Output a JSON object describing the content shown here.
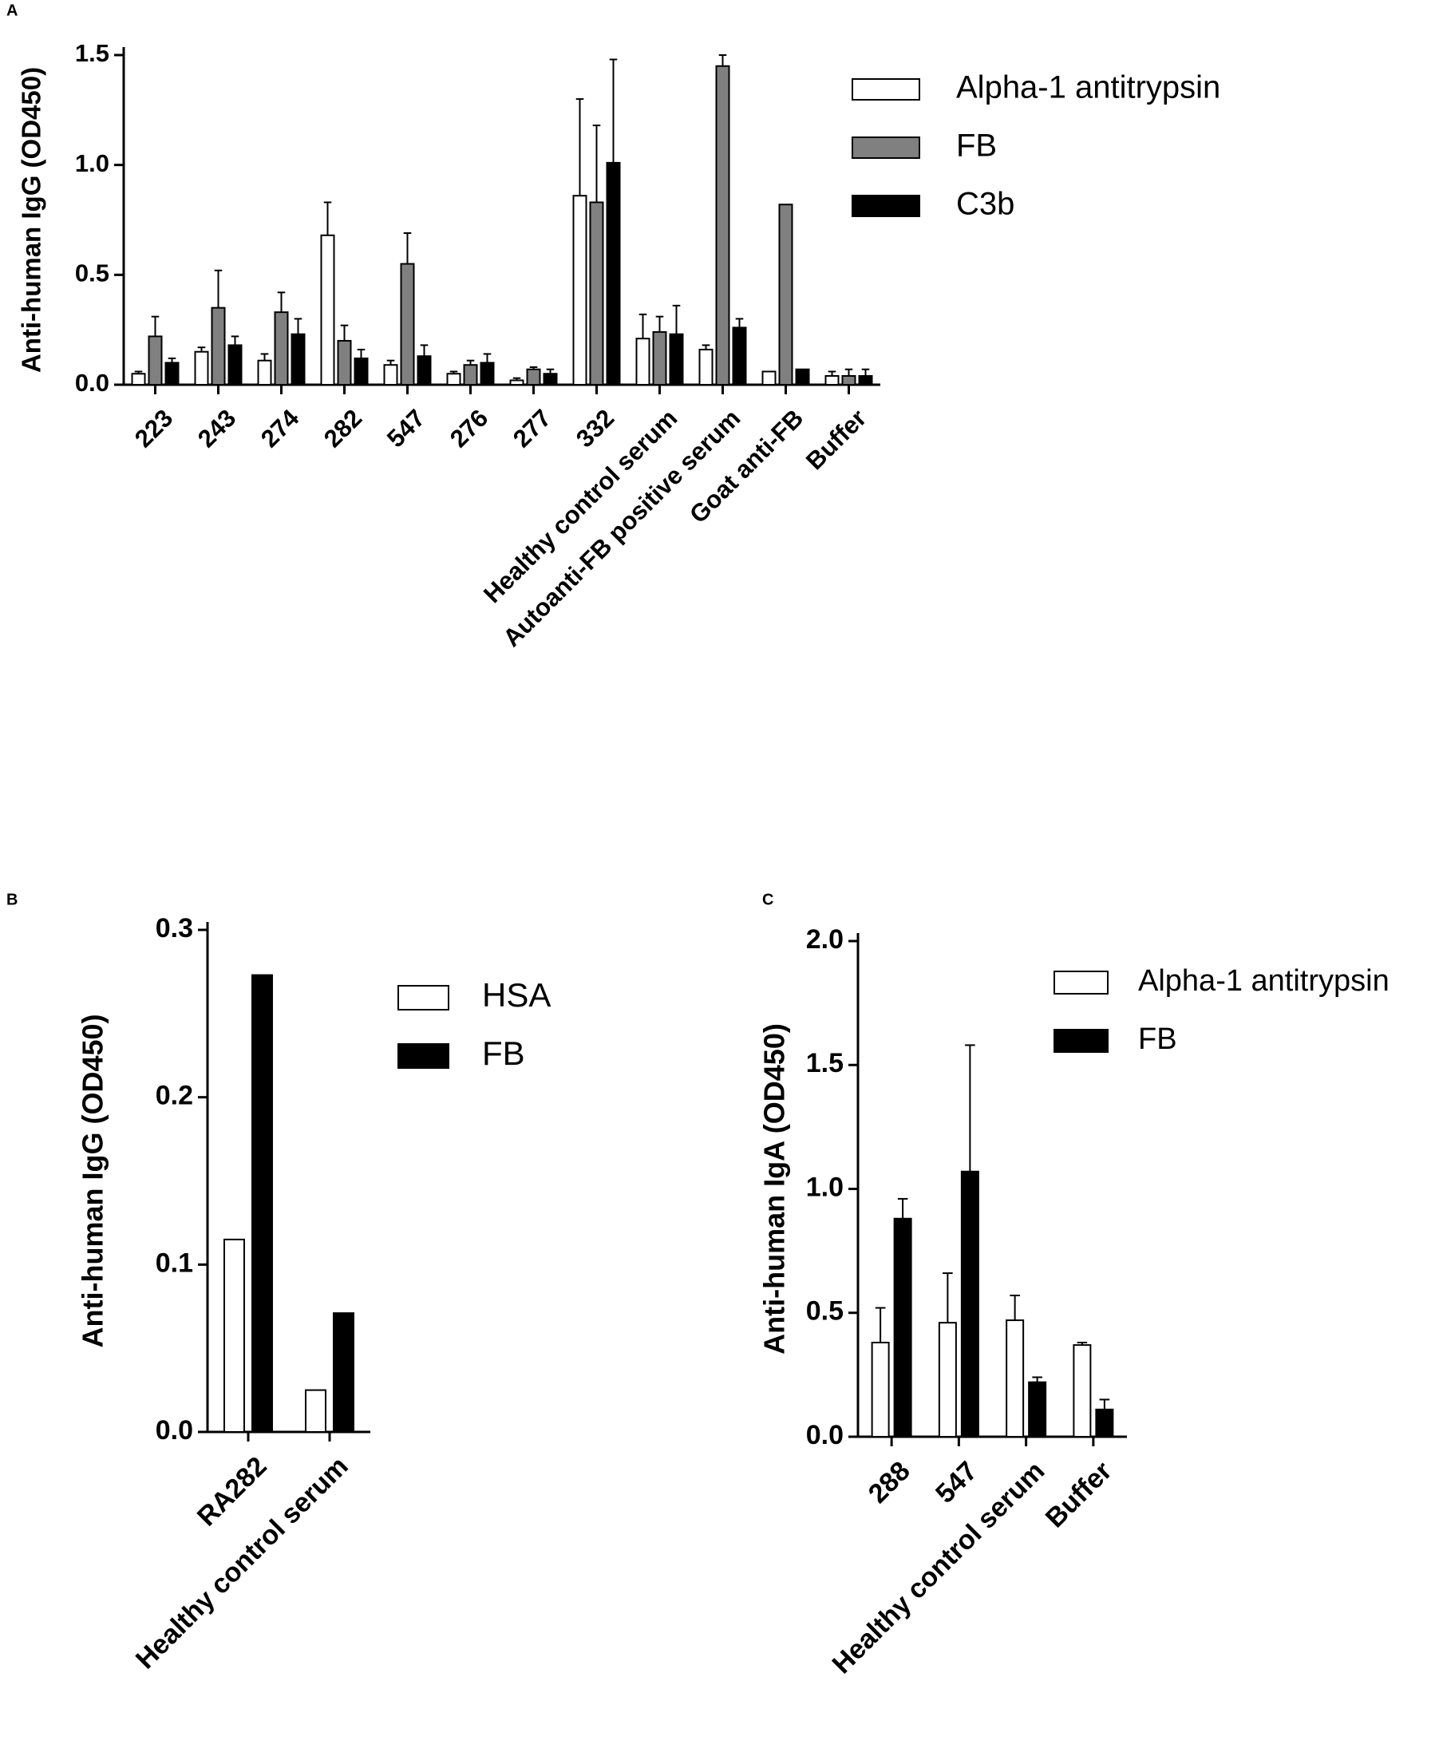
{
  "chart_data": [
    {
      "type": "bar",
      "panel": "A",
      "y_label": "Anti-human IgG (OD450)",
      "categories": [
        "223",
        "243",
        "274",
        "282",
        "547",
        "276",
        "277",
        "332",
        "Healthy control serum",
        "Autoanti-FB positive serum",
        "Goat anti-FB",
        "Buffer"
      ],
      "series": [
        {
          "name": "Alpha-1 antitrypsin",
          "color": "#ffffff",
          "values": [
            0.05,
            0.15,
            0.11,
            0.68,
            0.09,
            0.05,
            0.02,
            0.86,
            0.21,
            0.16,
            0.06,
            0.04
          ],
          "errors": [
            0.01,
            0.02,
            0.03,
            0.15,
            0.02,
            0.01,
            0.01,
            0.44,
            0.11,
            0.02,
            null,
            0.02
          ]
        },
        {
          "name": "FB",
          "color": "#808080",
          "values": [
            0.22,
            0.35,
            0.33,
            0.2,
            0.55,
            0.09,
            0.07,
            0.83,
            0.24,
            1.45,
            0.82,
            0.04
          ],
          "errors": [
            0.09,
            0.17,
            0.09,
            0.07,
            0.14,
            0.02,
            0.01,
            0.35,
            0.07,
            0.05,
            null,
            0.03
          ]
        },
        {
          "name": "C3b",
          "color": "#000000",
          "values": [
            0.1,
            0.18,
            0.23,
            0.12,
            0.13,
            0.1,
            0.05,
            1.01,
            0.23,
            0.26,
            0.07,
            0.04
          ],
          "errors": [
            0.02,
            0.04,
            0.07,
            0.04,
            0.05,
            0.04,
            0.02,
            0.47,
            0.13,
            0.04,
            null,
            0.03
          ]
        }
      ],
      "ylim": [
        0,
        1.5
      ],
      "yticks": [
        {
          "value": 0,
          "label": "0.0"
        },
        0.5,
        {
          "value": 1,
          "label": "1.0"
        },
        1.5
      ],
      "grid": false,
      "legend": "upper right"
    },
    {
      "type": "bar",
      "panel": "B",
      "y_label": "Anti-human IgG (OD450)",
      "categories": [
        "RA282",
        "Healthy control serum"
      ],
      "series": [
        {
          "name": "HSA",
          "color": "#ffffff",
          "values": [
            0.115,
            0.025
          ]
        },
        {
          "name": "FB",
          "color": "#000000",
          "values": [
            0.273,
            0.071
          ]
        }
      ],
      "ylim": [
        0,
        0.3
      ],
      "yticks": [
        {
          "value": 0,
          "label": "0.0"
        },
        0.1,
        0.2,
        0.3
      ],
      "grid": false,
      "legend": "upper right"
    },
    {
      "type": "bar",
      "panel": "C",
      "y_label": "Anti-human IgA (OD450)",
      "categories": [
        "288",
        "547",
        "Healthy control serum",
        "Buffer"
      ],
      "series": [
        {
          "name": "Alpha-1 antitrypsin",
          "color": "#ffffff",
          "values": [
            0.38,
            0.46,
            0.47,
            0.37
          ],
          "errors": [
            0.14,
            0.2,
            0.1,
            0.01
          ]
        },
        {
          "name": "FB",
          "color": "#000000",
          "values": [
            0.88,
            1.07,
            0.22,
            0.11
          ],
          "errors": [
            0.08,
            0.51,
            0.02,
            0.04
          ]
        }
      ],
      "ylim": [
        0,
        2
      ],
      "yticks": [
        {
          "value": 0,
          "label": "0.0"
        },
        0.5,
        {
          "value": 1,
          "label": "1.0"
        },
        1.5,
        {
          "value": 2,
          "label": "2.0"
        }
      ],
      "grid": false,
      "legend": "upper right"
    }
  ]
}
